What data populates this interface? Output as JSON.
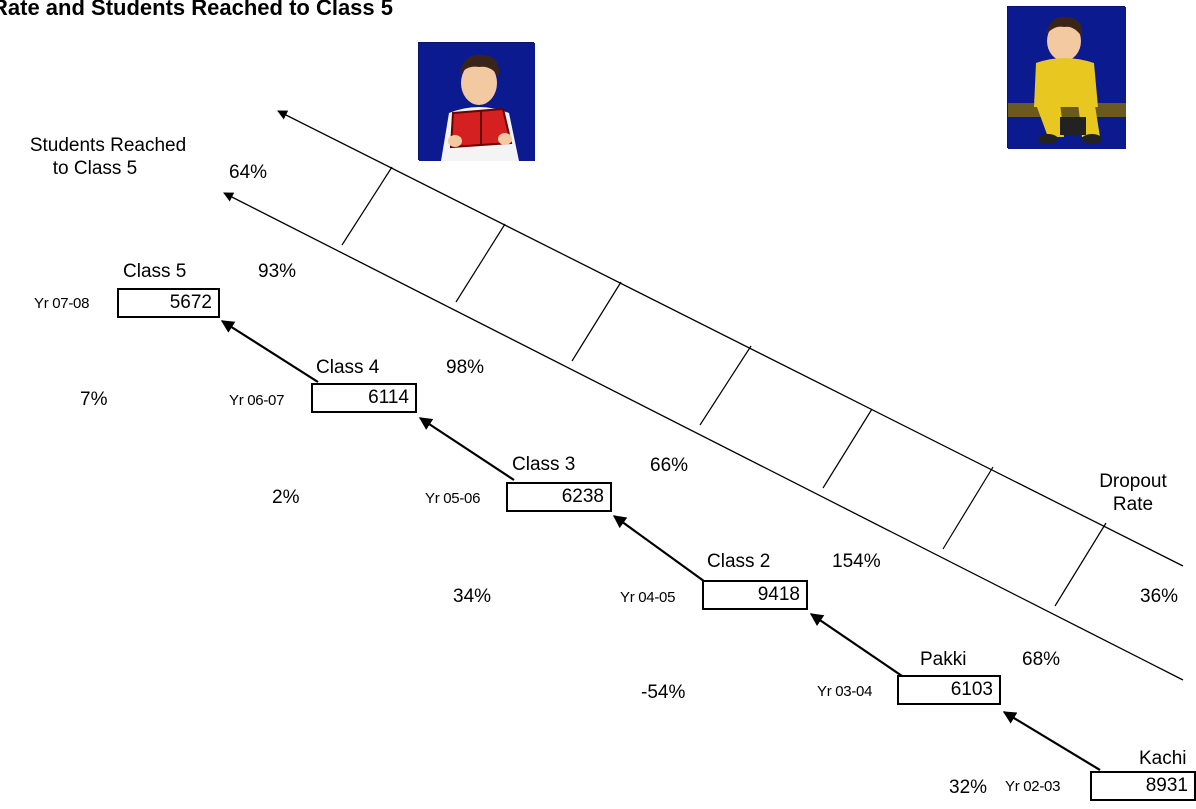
{
  "title": "Rate and Students Reached to Class 5",
  "left_arrow_label_line1": "Students Reached",
  "left_arrow_label_line2": "to Class 5",
  "right_arrow_label_line1": "Dropout",
  "right_arrow_label_line2": "Rate",
  "top_rate": "64%",
  "bottom_rate_right": "36%",
  "steps": [
    {
      "name": "Kachi",
      "year": "Yr 02-03",
      "value": "8931",
      "left_pct": "32%",
      "right_pct": ""
    },
    {
      "name": "Pakki",
      "year": "Yr 03-04",
      "value": "6103",
      "left_pct": "-54%",
      "right_pct": "68%"
    },
    {
      "name": "Class 2",
      "year": "Yr 04-05",
      "value": "9418",
      "left_pct": "34%",
      "right_pct": "154%"
    },
    {
      "name": "Class 3",
      "year": "Yr 05-06",
      "value": "6238",
      "left_pct": "2%",
      "right_pct": "66%"
    },
    {
      "name": "Class 4",
      "year": "Yr 06-07",
      "value": "6114",
      "left_pct": "7%",
      "right_pct": "98%"
    },
    {
      "name": "Class 5",
      "year": "Yr 07-08",
      "value": "5672",
      "left_pct": "",
      "right_pct": "93%"
    }
  ],
  "images": [
    {
      "icon": "boy-reading-book"
    },
    {
      "icon": "boy-sitting-sad"
    }
  ]
}
